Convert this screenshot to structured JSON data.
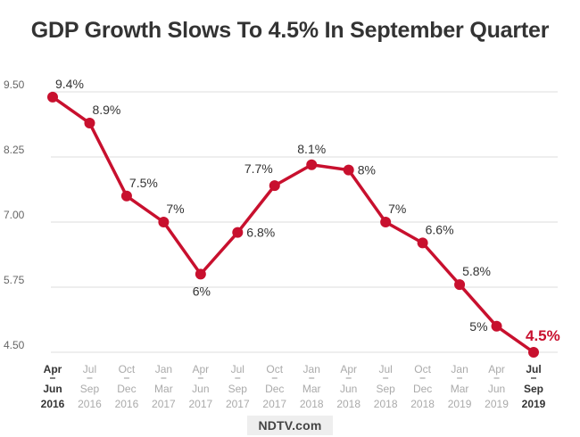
{
  "chart_data": {
    "type": "line",
    "title": "GDP Growth Slows To 4.5% In September Quarter",
    "xlabel": "",
    "ylabel": "",
    "ylim": [
      4.5,
      9.5
    ],
    "yticks": [
      "9.50",
      "8.25",
      "7.00",
      "5.75",
      "4.50"
    ],
    "ytick_values": [
      9.5,
      8.25,
      7.0,
      5.75,
      4.5
    ],
    "categories": [
      {
        "top": "Apr",
        "mid": "Jun",
        "year": "2016",
        "bold": true
      },
      {
        "top": "Jul",
        "mid": "Sep",
        "year": "2016",
        "bold": false
      },
      {
        "top": "Oct",
        "mid": "Dec",
        "year": "2016",
        "bold": false
      },
      {
        "top": "Jan",
        "mid": "Mar",
        "year": "2017",
        "bold": false
      },
      {
        "top": "Apr",
        "mid": "Jun",
        "year": "2017",
        "bold": false
      },
      {
        "top": "Jul",
        "mid": "Sep",
        "year": "2017",
        "bold": false
      },
      {
        "top": "Oct",
        "mid": "Dec",
        "year": "2017",
        "bold": false
      },
      {
        "top": "Jan",
        "mid": "Mar",
        "year": "2018",
        "bold": false
      },
      {
        "top": "Apr",
        "mid": "Jun",
        "year": "2018",
        "bold": false
      },
      {
        "top": "Jul",
        "mid": "Sep",
        "year": "2018",
        "bold": false
      },
      {
        "top": "Oct",
        "mid": "Dec",
        "year": "2018",
        "bold": false
      },
      {
        "top": "Jan",
        "mid": "Mar",
        "year": "2019",
        "bold": false
      },
      {
        "top": "Apr",
        "mid": "Jun",
        "year": "2019",
        "bold": false
      },
      {
        "top": "Jul",
        "mid": "Sep",
        "year": "2019",
        "bold": true
      }
    ],
    "series": [
      {
        "name": "GDP Growth",
        "values": [
          9.4,
          8.9,
          7.5,
          7.0,
          6.0,
          6.8,
          7.7,
          8.1,
          8.0,
          7.0,
          6.6,
          5.8,
          5.0,
          4.5
        ],
        "labels": [
          "9.4%",
          "8.9%",
          "7.5%",
          "7%",
          "6%",
          "6.8%",
          "7.7%",
          "8.1%",
          "8%",
          "7%",
          "6.6%",
          "5.8%",
          "5%",
          "4.5%"
        ],
        "label_positions": [
          "above-right",
          "above-right",
          "above-right",
          "above-right",
          "below",
          "right",
          "above-left",
          "above",
          "right",
          "above-right",
          "above-right",
          "above-right",
          "left",
          "above-right"
        ],
        "highlight_last": true
      }
    ],
    "colors": {
      "line": "#c8102e",
      "highlight_label": "#c8102e",
      "label": "#333333",
      "grid": "#dddddd",
      "tick_dim": "#aaaaaa",
      "tick_bold": "#333333"
    }
  },
  "watermark": "NDTV.com"
}
